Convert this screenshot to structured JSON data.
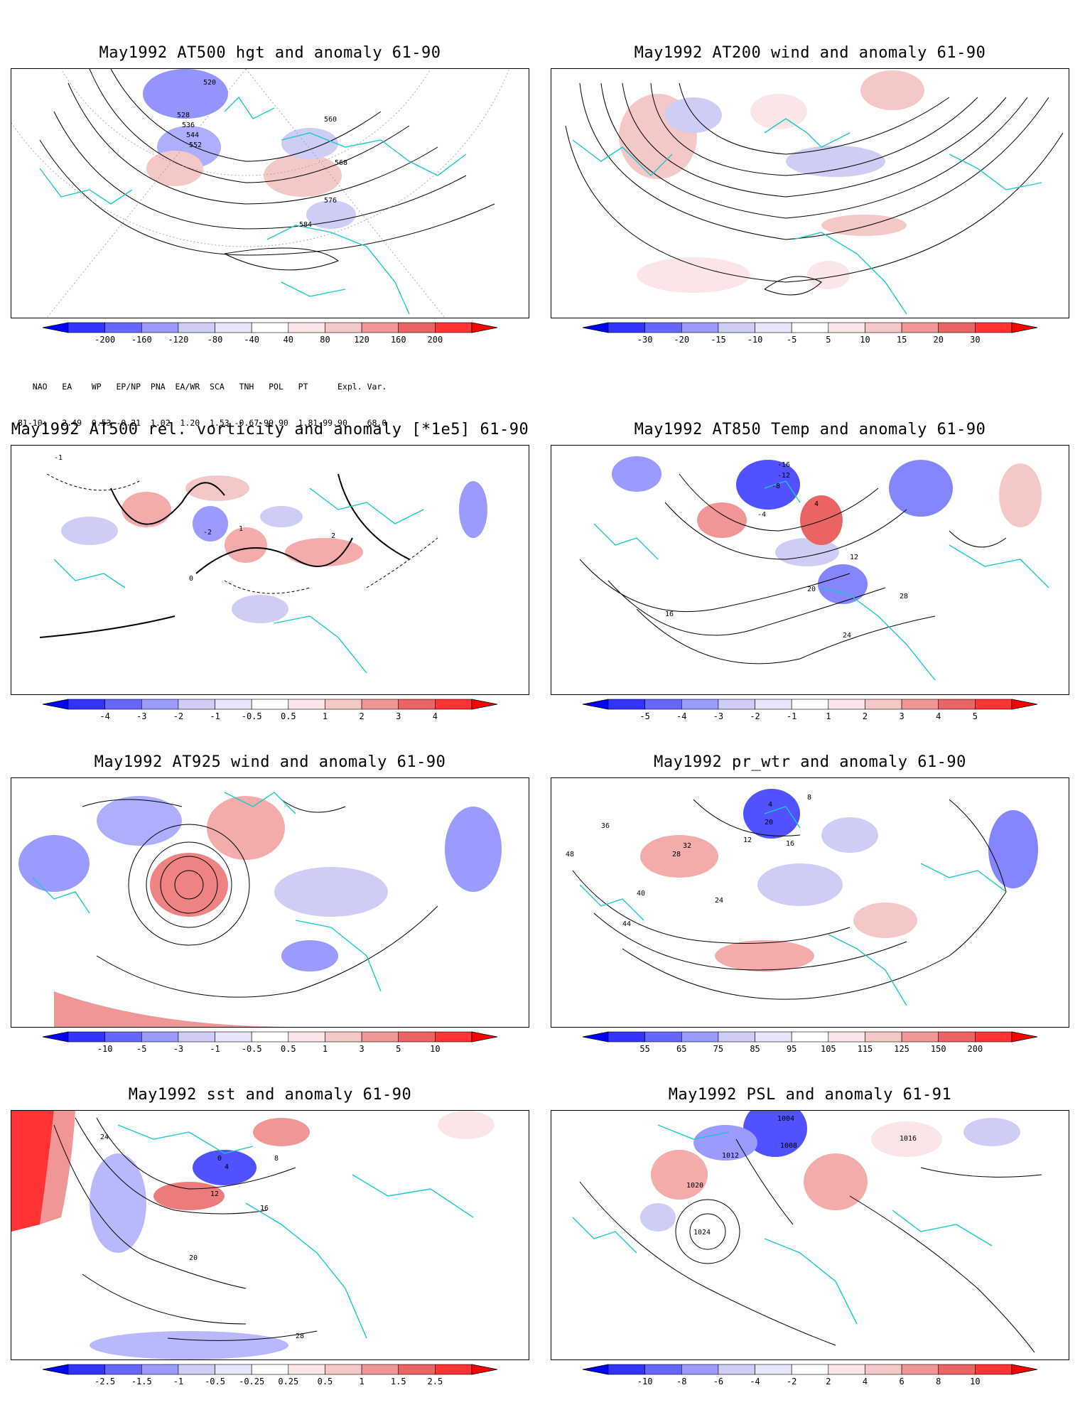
{
  "colors": {
    "neg_scale": [
      "#0000ff",
      "#3333ff",
      "#6666ff",
      "#9a9aff",
      "#cdcdf5",
      "#e6e6fa"
    ],
    "pos_scale": [
      "#fae6e6",
      "#f5c8c8",
      "#f09696",
      "#eb6464",
      "#ff3333",
      "#ff0000"
    ],
    "coast": "#19c8c8",
    "contour": "#000000",
    "grid": "#999999"
  },
  "panels": [
    {
      "title": "May1992 AT500 hgt and anomaly 61-90",
      "ticks": [
        "-200",
        "-160",
        "-120",
        "-80",
        "-40",
        "40",
        "80",
        "120",
        "160",
        "200"
      ],
      "labels": [
        "520",
        "528",
        "536",
        "544",
        "552",
        "560",
        "568",
        "576",
        "584"
      ]
    },
    {
      "title": "May1992 AT200 wind and anomaly 61-90",
      "ticks": [
        "-30",
        "-20",
        "-15",
        "-10",
        "-5",
        "5",
        "10",
        "15",
        "20",
        "30"
      ],
      "labels": []
    },
    {
      "title": "May1992 AT500 rel. vorticity and anomaly [*1e5] 61-90",
      "ticks": [
        "-4",
        "-3",
        "-2",
        "-1",
        "-0.5",
        "0.5",
        "1",
        "2",
        "3",
        "4"
      ],
      "labels": [
        "-1",
        "-2",
        "1",
        "2",
        "0"
      ]
    },
    {
      "title": "May1992 AT850 Temp and anomaly 61-90",
      "ticks": [
        "-5",
        "-4",
        "-3",
        "-2",
        "-1",
        "1",
        "2",
        "3",
        "4",
        "5"
      ],
      "labels": [
        "-16",
        "-12",
        "-8",
        "-4",
        "4",
        "12",
        "16",
        "20",
        "24",
        "28"
      ]
    },
    {
      "title": "May1992 AT925 wind and anomaly 61-90",
      "ticks": [
        "-10",
        "-5",
        "-3",
        "-1",
        "-0.5",
        "0.5",
        "1",
        "3",
        "5",
        "10"
      ],
      "labels": []
    },
    {
      "title": "May1992 pr_wtr and anomaly 61-90",
      "ticks": [
        "55",
        "65",
        "75",
        "85",
        "95",
        "105",
        "115",
        "125",
        "150",
        "200"
      ],
      "labels": [
        "4",
        "8",
        "12",
        "16",
        "20",
        "24",
        "28",
        "32",
        "36",
        "40",
        "44",
        "48"
      ]
    },
    {
      "title": "May1992 sst and anomaly 61-90",
      "ticks": [
        "-2.5",
        "-1.5",
        "-1",
        "-0.5",
        "-0.25",
        "0.25",
        "0.5",
        "1",
        "1.5",
        "2.5"
      ],
      "labels": [
        "0",
        "4",
        "8",
        "12",
        "16",
        "20",
        "24",
        "28"
      ]
    },
    {
      "title": "May1992 PSL and anomaly 61-91",
      "ticks": [
        "-10",
        "-8",
        "-6",
        "-4",
        "-2",
        "2",
        "4",
        "6",
        "8",
        "10"
      ],
      "labels": [
        "1004",
        "1008",
        "1012",
        "1016",
        "1020",
        "1024"
      ]
    }
  ],
  "teleconnections": {
    "header": "   NAO   EA    WP   EP/NP  PNA  EA/WR  SCA   TNH   POL   PT      Expl. Var.",
    "row": "81-10:   2.49  0.53 -0.21  1.02  1.20  1.53 -0.67-99.90  1.81-99.90    68.0"
  }
}
